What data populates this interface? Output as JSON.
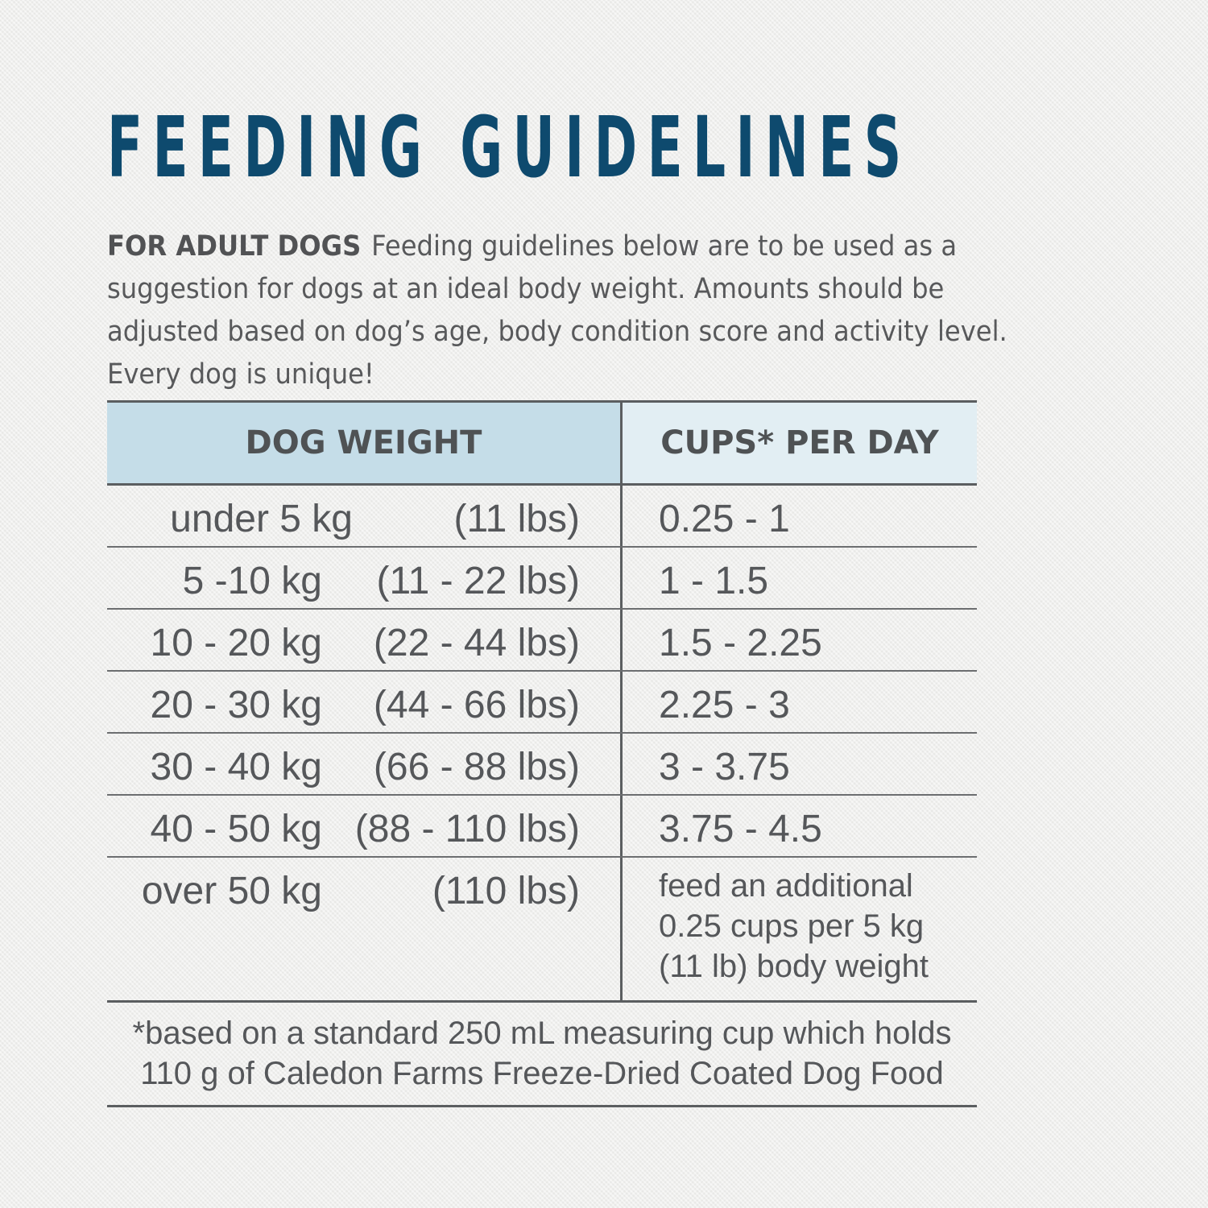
{
  "title": "FEEDING GUIDELINES",
  "intro": {
    "lead": "FOR ADULT DOGS",
    "text": "Feeding guidelines below are to be used as a suggestion for dogs at an ideal body weight. Amounts should be adjusted based on dog’s age, body condition score and activity level. Every dog is unique!"
  },
  "table": {
    "headers": {
      "weight": "DOG WEIGHT",
      "cups": "CUPS* PER DAY"
    },
    "rows": [
      {
        "kg": "under 5 kg",
        "lbs": "(11 lbs)",
        "cups": "0.25 - 1"
      },
      {
        "kg": "5 -10 kg",
        "lbs": "(11 - 22 lbs)",
        "cups": "1 - 1.5"
      },
      {
        "kg": "10 - 20 kg",
        "lbs": "(22 - 44 lbs)",
        "cups": "1.5 - 2.25"
      },
      {
        "kg": "20 - 30 kg",
        "lbs": "(44 - 66 lbs)",
        "cups": "2.25 - 3"
      },
      {
        "kg": "30 - 40 kg",
        "lbs": "(66 - 88 lbs)",
        "cups": "3 - 3.75"
      },
      {
        "kg": "40 - 50 kg",
        "lbs": "(88  - 110 lbs)",
        "cups": "3.75 - 4.5"
      },
      {
        "kg": "over 50 kg",
        "lbs": "(110 lbs)",
        "cups": "feed an additional 0.25 cups per 5 kg (11 lb) body weight"
      }
    ]
  },
  "footnote": {
    "line1": "*based on a standard 250 mL measuring cup which holds",
    "line2": "110 g of Caledon Farms Freeze-Dried Coated Dog Food"
  }
}
